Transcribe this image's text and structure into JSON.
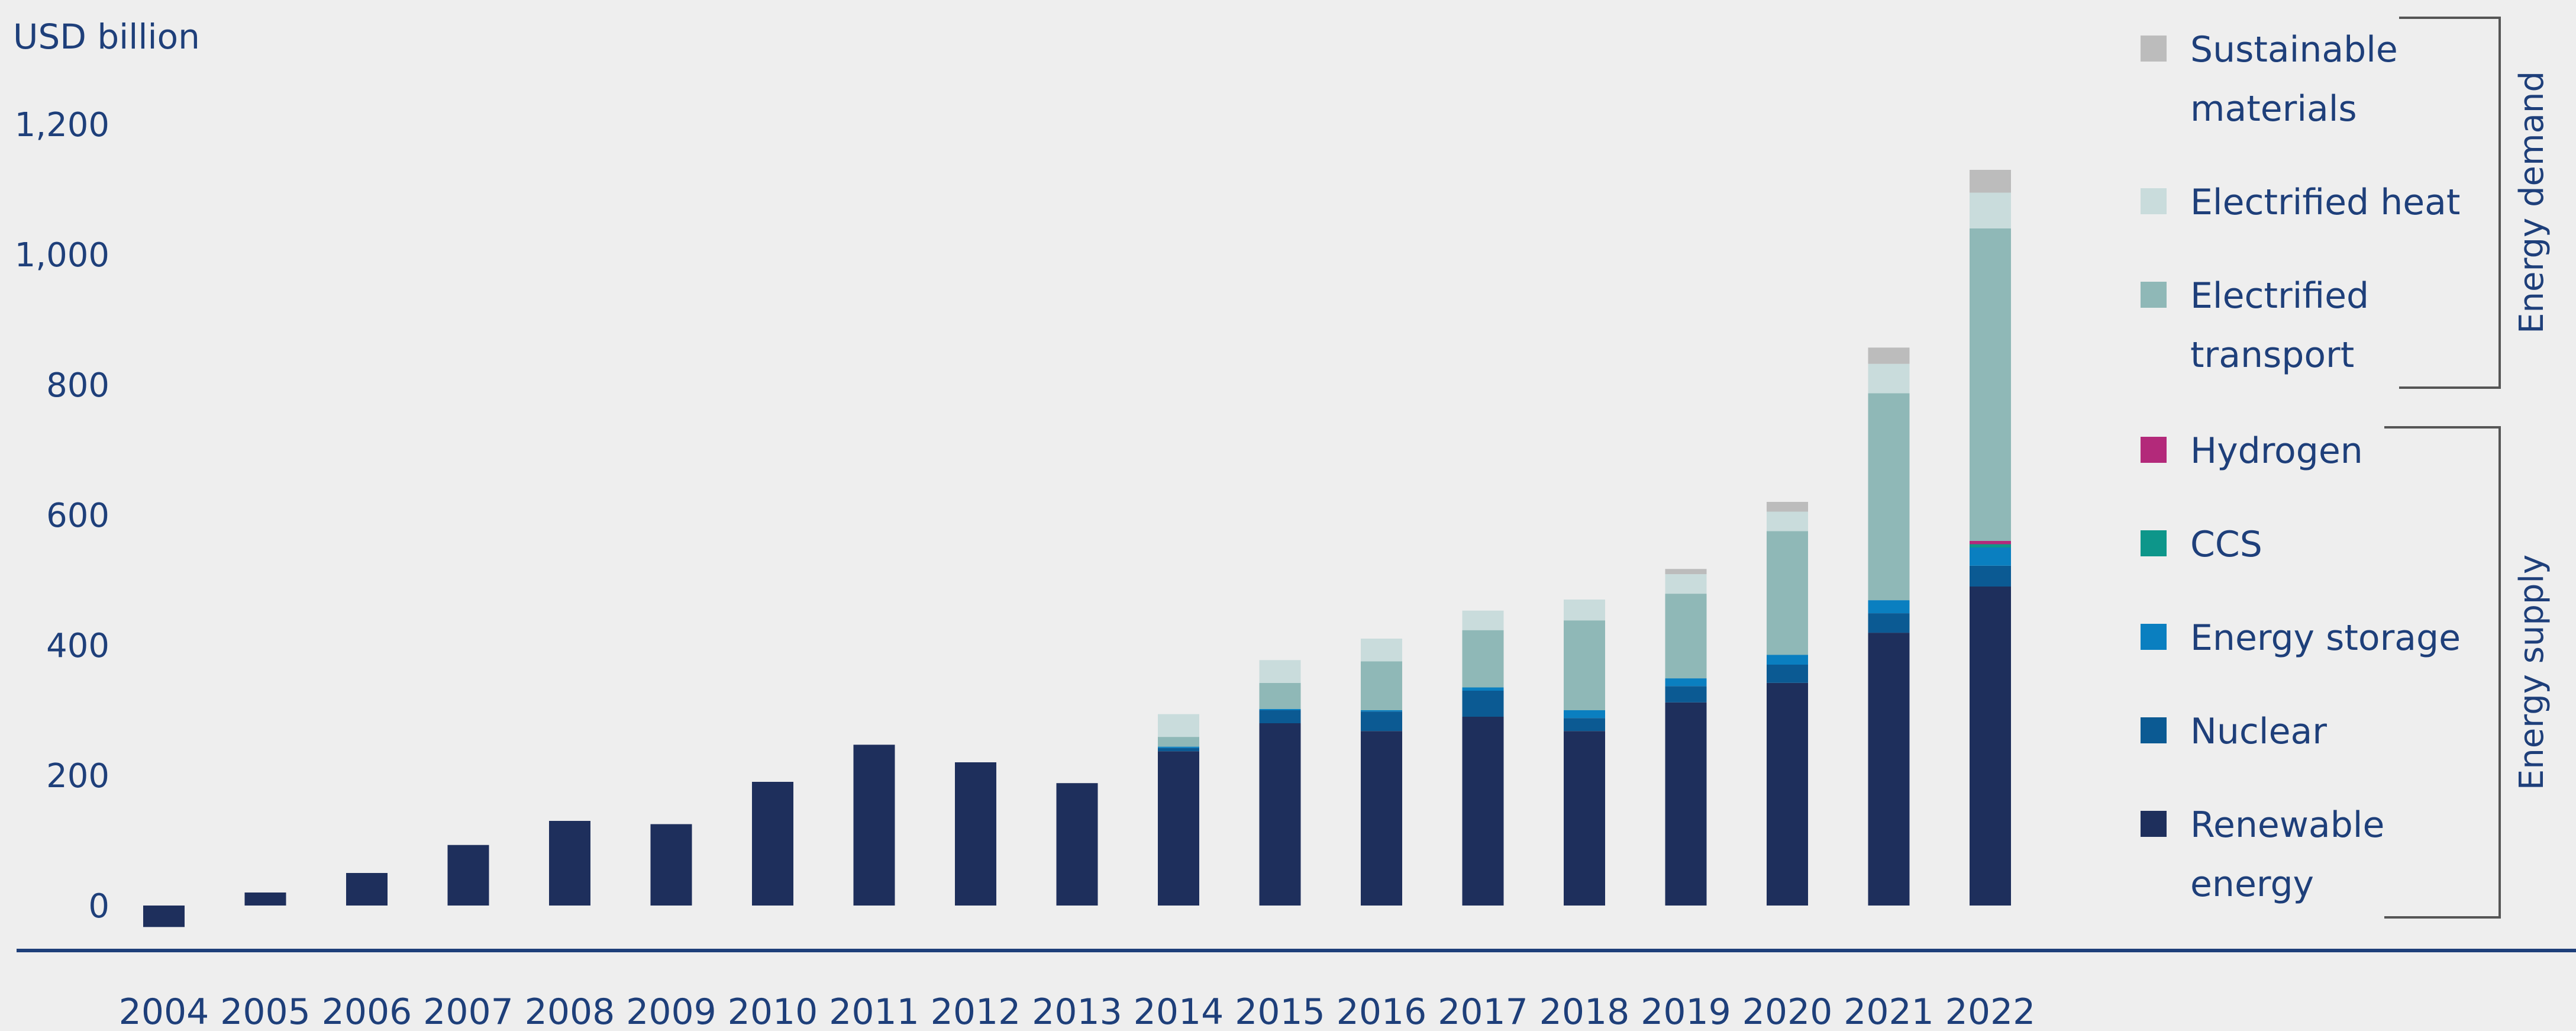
{
  "chart_data": {
    "type": "bar",
    "stacked": true,
    "ylabel": "USD billion",
    "ylim": [
      0,
      1200
    ],
    "yticks": [
      0,
      200,
      400,
      600,
      800,
      1000,
      1200
    ],
    "ytick_labels": [
      "0",
      "200",
      "400",
      "600",
      "800",
      "1,000",
      "1,200"
    ],
    "categories": [
      "2004",
      "2005",
      "2006",
      "2007",
      "2008",
      "2009",
      "2010",
      "2011",
      "2012",
      "2013",
      "2014",
      "2015",
      "2016",
      "2017",
      "2018",
      "2019",
      "2020",
      "2021",
      "2022"
    ],
    "series": [
      {
        "name": "Renewable energy",
        "color": "#1e2f5c",
        "values": [
          -33,
          20,
          50,
          93,
          130,
          125,
          190,
          247,
          220,
          188,
          237,
          280,
          268,
          290,
          268,
          312,
          342,
          419,
          490
        ]
      },
      {
        "name": "Nuclear",
        "color": "#0b5a93",
        "values": [
          0,
          0,
          0,
          0,
          0,
          0,
          0,
          0,
          0,
          0,
          5,
          20,
          30,
          40,
          20,
          25,
          28,
          30,
          32
        ]
      },
      {
        "name": "Energy storage",
        "color": "#0a7fc0",
        "values": [
          0,
          0,
          0,
          0,
          0,
          0,
          0,
          0,
          0,
          0,
          2,
          2,
          2,
          5,
          12,
          12,
          15,
          20,
          28
        ]
      },
      {
        "name": "CCS",
        "color": "#0d968a",
        "values": [
          0,
          0,
          0,
          0,
          0,
          0,
          0,
          0,
          0,
          0,
          0,
          0,
          0,
          0,
          0,
          0,
          0,
          0,
          5
        ]
      },
      {
        "name": "Hydrogen",
        "color": "#b3297a",
        "values": [
          0,
          0,
          0,
          0,
          0,
          0,
          0,
          0,
          0,
          0,
          0,
          0,
          0,
          0,
          0,
          0,
          0,
          0,
          5
        ]
      },
      {
        "name": "Electrified transport",
        "color": "#8fb8b7",
        "values": [
          0,
          0,
          0,
          0,
          0,
          0,
          0,
          0,
          0,
          0,
          15,
          40,
          75,
          88,
          138,
          130,
          190,
          318,
          480
        ]
      },
      {
        "name": "Electrified heat",
        "color": "#c9dcdc",
        "values": [
          0,
          0,
          0,
          0,
          0,
          0,
          0,
          0,
          0,
          0,
          35,
          35,
          35,
          30,
          32,
          30,
          30,
          45,
          55
        ]
      },
      {
        "name": "Sustainable materials",
        "color": "#bcbcbc",
        "values": [
          0,
          0,
          0,
          0,
          0,
          0,
          0,
          0,
          0,
          0,
          0,
          0,
          0,
          0,
          0,
          8,
          15,
          25,
          35
        ]
      }
    ],
    "legend": [
      {
        "label": [
          "Sustainable",
          "materials"
        ],
        "color": "#bcbcbc"
      },
      {
        "label": [
          "Electrified heat"
        ],
        "color": "#c9dcdc"
      },
      {
        "label": [
          "Electrified",
          " transport"
        ],
        "color": "#8fb8b7"
      },
      {
        "label": [
          "Hydrogen"
        ],
        "color": "#b3297a"
      },
      {
        "label": [
          "CCS"
        ],
        "color": "#0d968a"
      },
      {
        "label": [
          "Energy storage"
        ],
        "color": "#0a7fc0"
      },
      {
        "label": [
          "Nuclear"
        ],
        "color": "#0b5a93"
      },
      {
        "label": [
          "Renewable",
          "energy"
        ],
        "color": "#1e2f5c"
      }
    ],
    "groups": [
      {
        "label": "Energy demand",
        "members": [
          "Sustainable materials",
          "Electrified heat",
          "Electrified transport"
        ]
      },
      {
        "label": "Energy supply",
        "members": [
          "Hydrogen",
          "CCS",
          "Energy storage",
          "Nuclear",
          "Renewable energy"
        ]
      }
    ],
    "grid": false,
    "legend_position": "right"
  }
}
